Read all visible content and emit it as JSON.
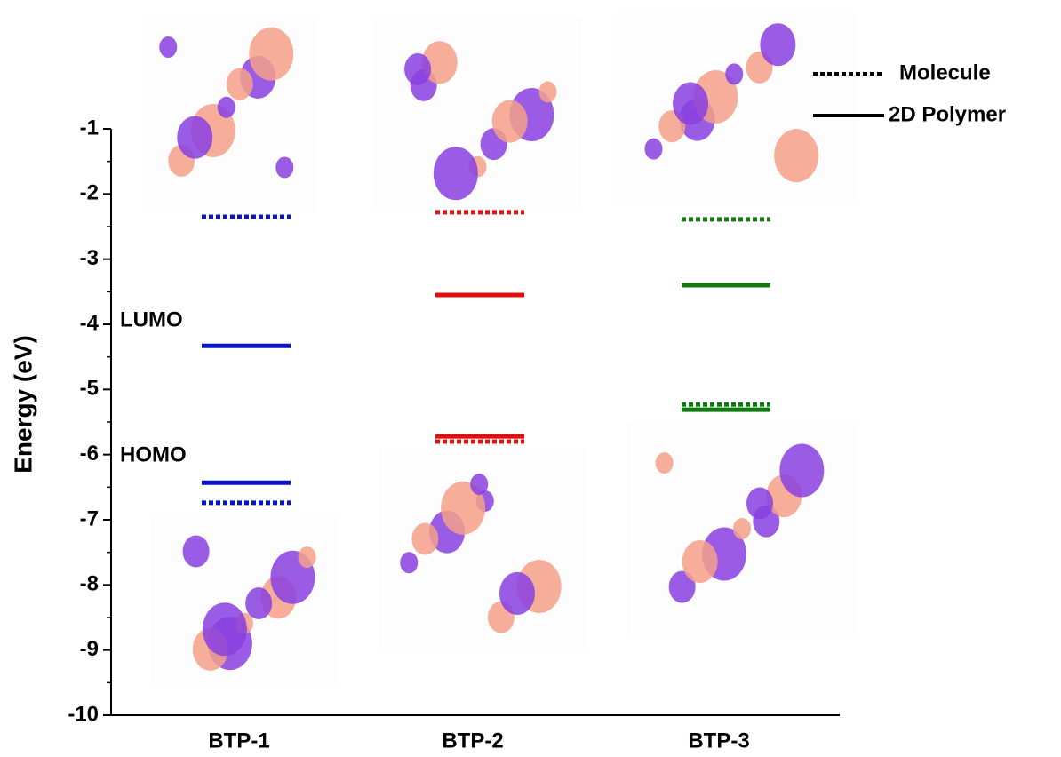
{
  "chart_data": {
    "type": "energy-level",
    "y_label": "Energy (eV)",
    "categories": [
      "BTP-1",
      "BTP-2",
      "BTP-3"
    ],
    "category_colors": [
      "#0a14c8",
      "#e01010",
      "#0e7a10"
    ],
    "series": [
      {
        "name": "Molecule",
        "line_style": "dotted",
        "lumo": [
          -2.35,
          -2.28,
          -2.39
        ],
        "homo": [
          -6.74,
          -5.8,
          -5.23
        ]
      },
      {
        "name": "2D Polymer",
        "line_style": "solid",
        "lumo": [
          -4.33,
          -3.55,
          -3.4
        ],
        "homo": [
          -6.43,
          -5.72,
          -5.31
        ]
      }
    ],
    "annotations": [
      "LUMO",
      "HOMO"
    ],
    "ylim": [
      -10,
      -1
    ],
    "yticks": [
      -10,
      -9,
      -8,
      -7,
      -6,
      -5,
      -4,
      -3,
      -2,
      -1
    ]
  }
}
